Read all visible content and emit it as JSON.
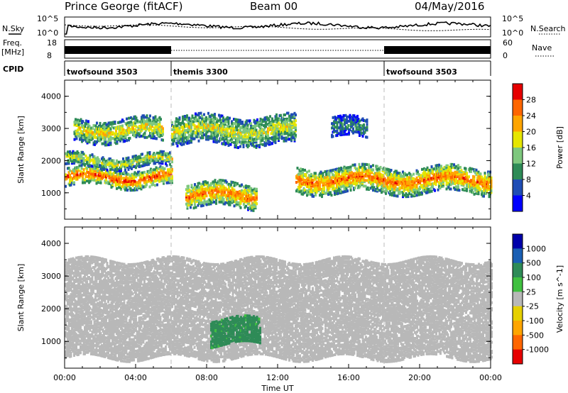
{
  "header": {
    "station": "Prince George (fitACF)",
    "beam": "Beam 00",
    "date": "04/May/2016"
  },
  "panel_labels": {
    "nsky": "N.Sky",
    "nsearch": "N.Search",
    "freq": "Freq.",
    "freq_unit": "[MHz]",
    "nave": "Nave",
    "cpid": "CPID"
  },
  "top_ticks": {
    "nsky_top": "10^5",
    "nsky_bottom": "10^0",
    "freq_top": "18",
    "freq_bottom": "8",
    "nave_top": "60",
    "nave_bottom": "0"
  },
  "cpid_segments": [
    {
      "label": "twofsound 3503",
      "start": 0,
      "end": 6
    },
    {
      "label": "themis 3300",
      "start": 6,
      "end": 18
    },
    {
      "label": "twofsound 3503",
      "start": 18,
      "end": 24
    }
  ],
  "chart_data": [
    {
      "type": "heatmap",
      "name": "power",
      "ylabel": "Slant Range [km]",
      "colorbar_label": "Power [dB]",
      "xlim": [
        0,
        24
      ],
      "ylim": [
        180,
        4500
      ],
      "yticks": [
        1000,
        2000,
        3000,
        4000
      ],
      "colorbar": {
        "ticks": [
          "4",
          "8",
          "12",
          "16",
          "20",
          "24",
          "28"
        ],
        "colors": [
          "#0000ff",
          "#1f4db5",
          "#2e8b57",
          "#7ec87e",
          "#e6e600",
          "#ffa500",
          "#ff6600",
          "#e60000"
        ]
      },
      "regions": [
        {
          "t": [
            0,
            6
          ],
          "r": [
            1200,
            1750
          ],
          "level": 28
        },
        {
          "t": [
            0,
            6
          ],
          "r": [
            1800,
            2200
          ],
          "level": 18
        },
        {
          "t": [
            0.5,
            5.5
          ],
          "r": [
            2600,
            3300
          ],
          "level": 20
        },
        {
          "t": [
            6.8,
            10.8
          ],
          "r": [
            550,
            1300
          ],
          "level": 26
        },
        {
          "t": [
            6,
            13
          ],
          "r": [
            2500,
            3400
          ],
          "level": 18
        },
        {
          "t": [
            13,
            24
          ],
          "r": [
            1000,
            1800
          ],
          "level": 26
        },
        {
          "t": [
            15,
            17
          ],
          "r": [
            2700,
            3300
          ],
          "level": 10
        }
      ]
    },
    {
      "type": "heatmap",
      "name": "velocity",
      "ylabel": "Slant Range [km]",
      "xlabel": "Time UT",
      "colorbar_label": "Velocity [m s^-1]",
      "xlim": [
        0,
        24
      ],
      "ylim": [
        180,
        4500
      ],
      "yticks": [
        1000,
        2000,
        3000,
        4000
      ],
      "xticks": [
        "00:00",
        "04:00",
        "08:00",
        "12:00",
        "16:00",
        "20:00",
        "00:00"
      ],
      "colorbar": {
        "ticks": [
          "1000",
          "500",
          "100",
          "25",
          "-25",
          "-100",
          "-500",
          "-1000"
        ],
        "colors": [
          "#0000aa",
          "#1a5fb4",
          "#2e8b57",
          "#40c040",
          "#b8b8b8",
          "#e6d000",
          "#ffa500",
          "#ff6600",
          "#e60000"
        ]
      },
      "regions": [
        {
          "t": [
            0,
            24
          ],
          "r": [
            500,
            3500
          ],
          "value": 0
        },
        {
          "t": [
            8.2,
            11
          ],
          "r": [
            900,
            1700
          ],
          "value": 150
        }
      ]
    }
  ],
  "colors": {
    "grid_dash": "#bbbbbb"
  }
}
